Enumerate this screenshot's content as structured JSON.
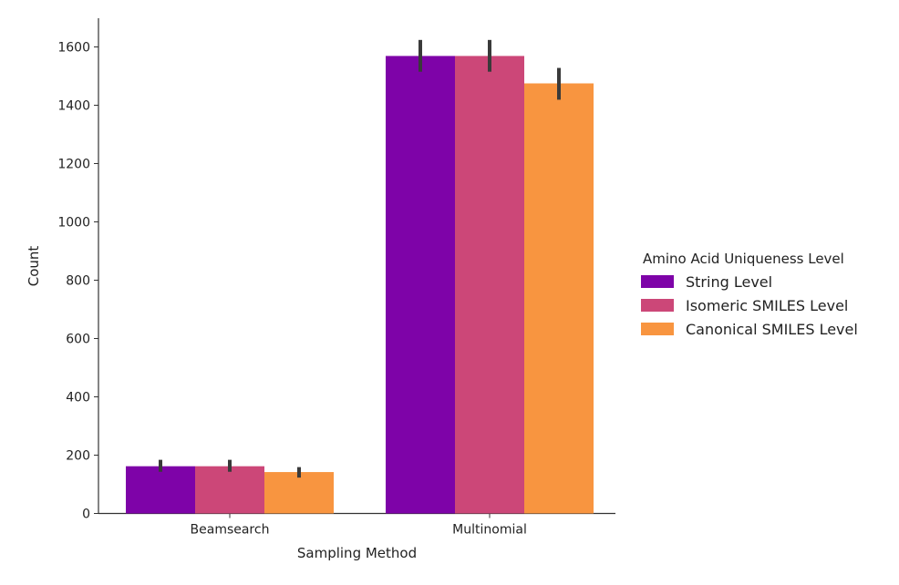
{
  "chart_data": {
    "type": "bar",
    "title": "",
    "xlabel": "Sampling Method",
    "ylabel": "Count",
    "categories": [
      "Beamsearch",
      "Multinomial"
    ],
    "ylim": [
      0,
      1700
    ],
    "yticks": [
      0,
      200,
      400,
      600,
      800,
      1000,
      1200,
      1400,
      1600
    ],
    "grid": false,
    "legend": {
      "title": "Amino Acid Uniqueness Level",
      "placement": "right"
    },
    "series": [
      {
        "name": "String Level",
        "color": "#7e03a8",
        "values": [
          162,
          1569
        ],
        "err_low": [
          143,
          1515
        ],
        "err_high": [
          184,
          1624
        ]
      },
      {
        "name": "Isomeric SMILES Level",
        "color": "#cc4778",
        "values": [
          162,
          1569
        ],
        "err_low": [
          143,
          1515
        ],
        "err_high": [
          184,
          1624
        ]
      },
      {
        "name": "Canonical SMILES Level",
        "color": "#f89540",
        "values": [
          142,
          1475
        ],
        "err_low": [
          123,
          1419
        ],
        "err_high": [
          159,
          1528
        ]
      }
    ]
  }
}
